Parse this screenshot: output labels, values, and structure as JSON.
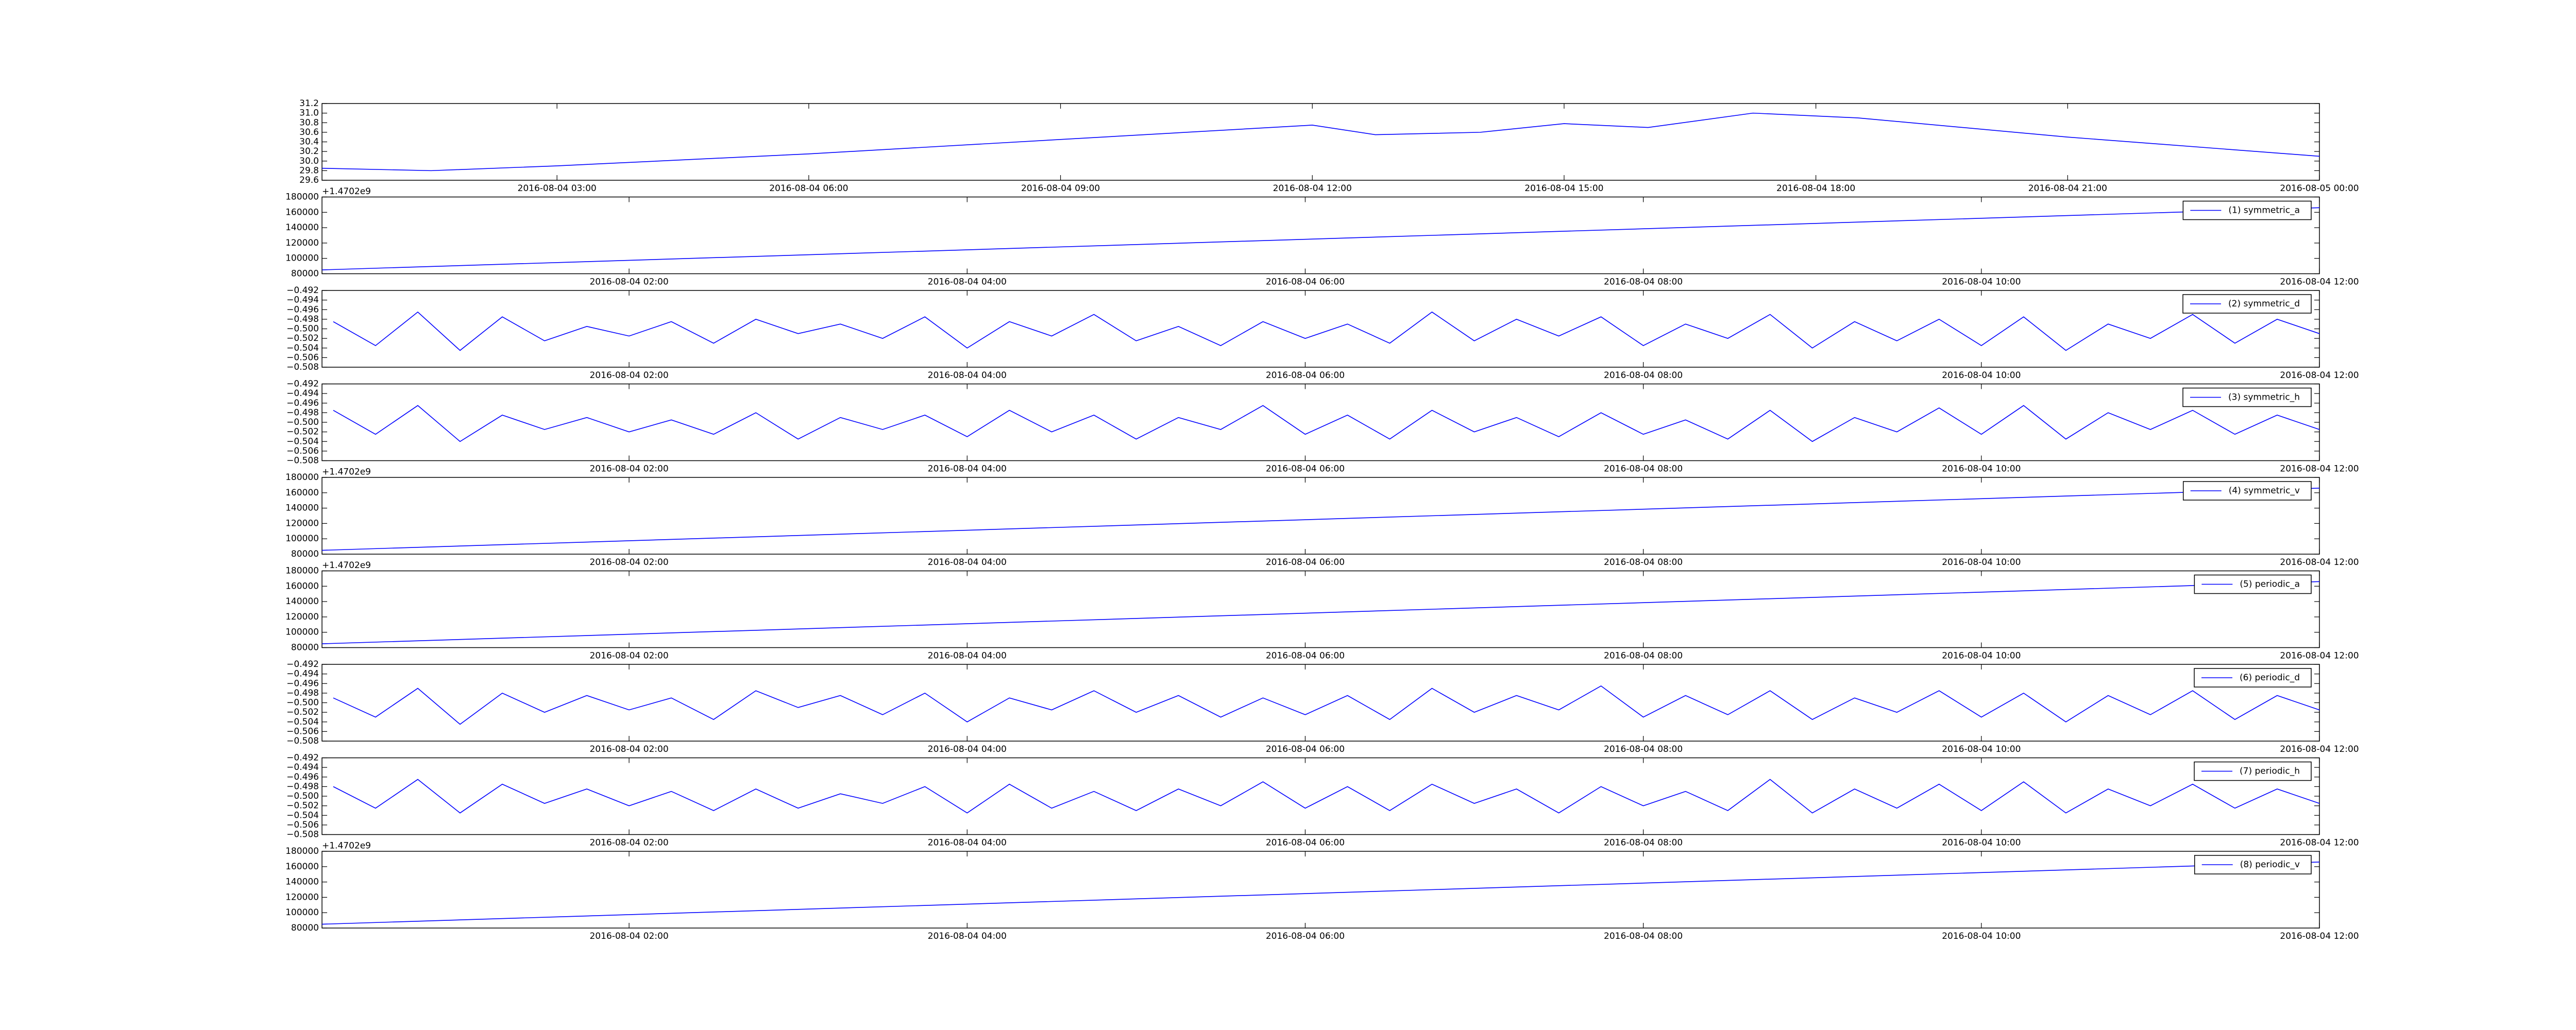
{
  "chart_data": [
    {
      "type": "line",
      "x": [
        "2016-08-04 00:12",
        "2016-08-04 01:30",
        "2016-08-04 03:00",
        "2016-08-04 06:00",
        "2016-08-04 09:00",
        "2016-08-04 12:00",
        "2016-08-04 12:45",
        "2016-08-04 14:00",
        "2016-08-04 15:00",
        "2016-08-04 16:00",
        "2016-08-04 17:15",
        "2016-08-04 18:30",
        "2016-08-04 21:00",
        "2016-08-05 00:00"
      ],
      "series": [
        {
          "color": "#0000ff",
          "values": [
            29.85,
            29.8,
            29.9,
            30.15,
            30.45,
            30.75,
            30.55,
            30.6,
            30.78,
            30.7,
            31.0,
            30.9,
            30.5,
            30.1
          ]
        }
      ],
      "xlim": [
        "2016-08-04 00:12",
        "2016-08-05 00:00"
      ],
      "xticks": [
        "2016-08-04 03:00",
        "2016-08-04 06:00",
        "2016-08-04 09:00",
        "2016-08-04 12:00",
        "2016-08-04 15:00",
        "2016-08-04 18:00",
        "2016-08-04 21:00",
        "2016-08-05 00:00"
      ],
      "ylim": [
        29.6,
        31.2
      ],
      "yticks": [
        29.6,
        29.8,
        {
          "value": 30,
          "label": "30.0"
        },
        30.2,
        30.4,
        30.6,
        30.8,
        {
          "value": 31,
          "label": "31.0"
        },
        31.2
      ],
      "offset_label": "+1.4702e9"
    },
    {
      "type": "line",
      "x": [
        "2016-08-04 00:11",
        "2016-08-04 12:00"
      ],
      "series": [
        {
          "name": "(1) symmetric_a",
          "color": "#0000ff",
          "values": [
            85000,
            166000
          ]
        }
      ],
      "legend": "upper right",
      "xlim": [
        "2016-08-04 00:11",
        "2016-08-04 12:00"
      ],
      "xticks": [
        "2016-08-04 02:00",
        "2016-08-04 04:00",
        "2016-08-04 06:00",
        "2016-08-04 08:00",
        "2016-08-04 10:00",
        "2016-08-04 12:00"
      ],
      "ylim": [
        80000,
        180000
      ],
      "yticks": [
        80000,
        100000,
        120000,
        140000,
        160000,
        180000
      ]
    },
    {
      "type": "line",
      "x": [
        "2016-08-04 00:15",
        "2016-08-04 00:30",
        "2016-08-04 00:45",
        "2016-08-04 01:00",
        "2016-08-04 01:15",
        "2016-08-04 01:30",
        "2016-08-04 01:45",
        "2016-08-04 02:00",
        "2016-08-04 02:15",
        "2016-08-04 02:30",
        "2016-08-04 02:45",
        "2016-08-04 03:00",
        "2016-08-04 03:15",
        "2016-08-04 03:30",
        "2016-08-04 03:45",
        "2016-08-04 04:00",
        "2016-08-04 04:15",
        "2016-08-04 04:30",
        "2016-08-04 04:45",
        "2016-08-04 05:00",
        "2016-08-04 05:15",
        "2016-08-04 05:30",
        "2016-08-04 05:45",
        "2016-08-04 06:00",
        "2016-08-04 06:15",
        "2016-08-04 06:30",
        "2016-08-04 06:45",
        "2016-08-04 07:00",
        "2016-08-04 07:15",
        "2016-08-04 07:30",
        "2016-08-04 07:45",
        "2016-08-04 08:00",
        "2016-08-04 08:15",
        "2016-08-04 08:30",
        "2016-08-04 08:45",
        "2016-08-04 09:00",
        "2016-08-04 09:15",
        "2016-08-04 09:30",
        "2016-08-04 09:45",
        "2016-08-04 10:00",
        "2016-08-04 10:15",
        "2016-08-04 10:30",
        "2016-08-04 10:45",
        "2016-08-04 11:00",
        "2016-08-04 11:15",
        "2016-08-04 11:30",
        "2016-08-04 11:45",
        "2016-08-04 12:00"
      ],
      "series": [
        {
          "name": "(2) symmetric_d",
          "color": "#0000ff",
          "values": [
            -0.4985,
            -0.5035,
            -0.4965,
            -0.5045,
            -0.4975,
            -0.5025,
            -0.4995,
            -0.5015,
            -0.4985,
            -0.503,
            -0.498,
            -0.501,
            -0.499,
            -0.502,
            -0.4975,
            -0.504,
            -0.4985,
            -0.5015,
            -0.497,
            -0.5025,
            -0.4995,
            -0.5035,
            -0.4985,
            -0.502,
            -0.499,
            -0.503,
            -0.4965,
            -0.5025,
            -0.498,
            -0.5015,
            -0.4975,
            -0.5035,
            -0.499,
            -0.502,
            -0.497,
            -0.504,
            -0.4985,
            -0.5025,
            -0.498,
            -0.5035,
            -0.4975,
            -0.5045,
            -0.499,
            -0.502,
            -0.497,
            -0.503,
            -0.498,
            -0.501
          ]
        }
      ],
      "legend": "upper right",
      "xlim": [
        "2016-08-04 00:11",
        "2016-08-04 12:00"
      ],
      "xticks": [
        "2016-08-04 02:00",
        "2016-08-04 04:00",
        "2016-08-04 06:00",
        "2016-08-04 08:00",
        "2016-08-04 10:00",
        "2016-08-04 12:00"
      ],
      "ylim": [
        -0.508,
        -0.492
      ],
      "yticks": [
        {
          "value": -0.508,
          "label": "−0.508"
        },
        {
          "value": -0.506,
          "label": "−0.506"
        },
        {
          "value": -0.504,
          "label": "−0.504"
        },
        {
          "value": -0.502,
          "label": "−0.502"
        },
        {
          "value": -0.5,
          "label": "−0.500"
        },
        {
          "value": -0.498,
          "label": "−0.498"
        },
        {
          "value": -0.496,
          "label": "−0.496"
        },
        {
          "value": -0.494,
          "label": "−0.494"
        },
        {
          "value": -0.492,
          "label": "−0.492"
        }
      ]
    },
    {
      "type": "line",
      "x": [
        "2016-08-04 00:15",
        "2016-08-04 00:30",
        "2016-08-04 00:45",
        "2016-08-04 01:00",
        "2016-08-04 01:15",
        "2016-08-04 01:30",
        "2016-08-04 01:45",
        "2016-08-04 02:00",
        "2016-08-04 02:15",
        "2016-08-04 02:30",
        "2016-08-04 02:45",
        "2016-08-04 03:00",
        "2016-08-04 03:15",
        "2016-08-04 03:30",
        "2016-08-04 03:45",
        "2016-08-04 04:00",
        "2016-08-04 04:15",
        "2016-08-04 04:30",
        "2016-08-04 04:45",
        "2016-08-04 05:00",
        "2016-08-04 05:15",
        "2016-08-04 05:30",
        "2016-08-04 05:45",
        "2016-08-04 06:00",
        "2016-08-04 06:15",
        "2016-08-04 06:30",
        "2016-08-04 06:45",
        "2016-08-04 07:00",
        "2016-08-04 07:15",
        "2016-08-04 07:30",
        "2016-08-04 07:45",
        "2016-08-04 08:00",
        "2016-08-04 08:15",
        "2016-08-04 08:30",
        "2016-08-04 08:45",
        "2016-08-04 09:00",
        "2016-08-04 09:15",
        "2016-08-04 09:30",
        "2016-08-04 09:45",
        "2016-08-04 10:00",
        "2016-08-04 10:15",
        "2016-08-04 10:30",
        "2016-08-04 10:45",
        "2016-08-04 11:00",
        "2016-08-04 11:15",
        "2016-08-04 11:30",
        "2016-08-04 11:45",
        "2016-08-04 12:00"
      ],
      "series": [
        {
          "name": "(3) symmetric_h",
          "color": "#0000ff",
          "values": [
            -0.4975,
            -0.5025,
            -0.4965,
            -0.504,
            -0.4985,
            -0.5015,
            -0.499,
            -0.502,
            -0.4995,
            -0.5025,
            -0.498,
            -0.5035,
            -0.499,
            -0.5015,
            -0.4985,
            -0.503,
            -0.4975,
            -0.502,
            -0.4985,
            -0.5035,
            -0.499,
            -0.5015,
            -0.4965,
            -0.5025,
            -0.4985,
            -0.5035,
            -0.4975,
            -0.502,
            -0.499,
            -0.503,
            -0.498,
            -0.5025,
            -0.4995,
            -0.5035,
            -0.4975,
            -0.504,
            -0.499,
            -0.502,
            -0.497,
            -0.5025,
            -0.4965,
            -0.5035,
            -0.498,
            -0.5015,
            -0.4975,
            -0.5025,
            -0.4985,
            -0.5015
          ]
        }
      ],
      "legend": "upper right",
      "xlim": [
        "2016-08-04 00:11",
        "2016-08-04 12:00"
      ],
      "xticks": [
        "2016-08-04 02:00",
        "2016-08-04 04:00",
        "2016-08-04 06:00",
        "2016-08-04 08:00",
        "2016-08-04 10:00",
        "2016-08-04 12:00"
      ],
      "ylim": [
        -0.508,
        -0.492
      ],
      "yticks": [
        {
          "value": -0.508,
          "label": "−0.508"
        },
        {
          "value": -0.506,
          "label": "−0.506"
        },
        {
          "value": -0.504,
          "label": "−0.504"
        },
        {
          "value": -0.502,
          "label": "−0.502"
        },
        {
          "value": -0.5,
          "label": "−0.500"
        },
        {
          "value": -0.498,
          "label": "−0.498"
        },
        {
          "value": -0.496,
          "label": "−0.496"
        },
        {
          "value": -0.494,
          "label": "−0.494"
        },
        {
          "value": -0.492,
          "label": "−0.492"
        }
      ],
      "offset_label": "+1.4702e9"
    },
    {
      "type": "line",
      "x": [
        "2016-08-04 00:11",
        "2016-08-04 12:00"
      ],
      "series": [
        {
          "name": "(4) symmetric_v",
          "color": "#0000ff",
          "values": [
            85000,
            166000
          ]
        }
      ],
      "legend": "upper right",
      "xlim": [
        "2016-08-04 00:11",
        "2016-08-04 12:00"
      ],
      "xticks": [
        "2016-08-04 02:00",
        "2016-08-04 04:00",
        "2016-08-04 06:00",
        "2016-08-04 08:00",
        "2016-08-04 10:00",
        "2016-08-04 12:00"
      ],
      "ylim": [
        80000,
        180000
      ],
      "yticks": [
        80000,
        100000,
        120000,
        140000,
        160000,
        180000
      ],
      "offset_label": "+1.4702e9"
    },
    {
      "type": "line",
      "x": [
        "2016-08-04 00:11",
        "2016-08-04 12:00"
      ],
      "series": [
        {
          "name": "(5) periodic_a",
          "color": "#0000ff",
          "values": [
            85000,
            166000
          ]
        }
      ],
      "legend": "upper right",
      "xlim": [
        "2016-08-04 00:11",
        "2016-08-04 12:00"
      ],
      "xticks": [
        "2016-08-04 02:00",
        "2016-08-04 04:00",
        "2016-08-04 06:00",
        "2016-08-04 08:00",
        "2016-08-04 10:00",
        "2016-08-04 12:00"
      ],
      "ylim": [
        80000,
        180000
      ],
      "yticks": [
        80000,
        100000,
        120000,
        140000,
        160000,
        180000
      ]
    },
    {
      "type": "line",
      "x": [
        "2016-08-04 00:15",
        "2016-08-04 00:30",
        "2016-08-04 00:45",
        "2016-08-04 01:00",
        "2016-08-04 01:15",
        "2016-08-04 01:30",
        "2016-08-04 01:45",
        "2016-08-04 02:00",
        "2016-08-04 02:15",
        "2016-08-04 02:30",
        "2016-08-04 02:45",
        "2016-08-04 03:00",
        "2016-08-04 03:15",
        "2016-08-04 03:30",
        "2016-08-04 03:45",
        "2016-08-04 04:00",
        "2016-08-04 04:15",
        "2016-08-04 04:30",
        "2016-08-04 04:45",
        "2016-08-04 05:00",
        "2016-08-04 05:15",
        "2016-08-04 05:30",
        "2016-08-04 05:45",
        "2016-08-04 06:00",
        "2016-08-04 06:15",
        "2016-08-04 06:30",
        "2016-08-04 06:45",
        "2016-08-04 07:00",
        "2016-08-04 07:15",
        "2016-08-04 07:30",
        "2016-08-04 07:45",
        "2016-08-04 08:00",
        "2016-08-04 08:15",
        "2016-08-04 08:30",
        "2016-08-04 08:45",
        "2016-08-04 09:00",
        "2016-08-04 09:15",
        "2016-08-04 09:30",
        "2016-08-04 09:45",
        "2016-08-04 10:00",
        "2016-08-04 10:15",
        "2016-08-04 10:30",
        "2016-08-04 10:45",
        "2016-08-04 11:00",
        "2016-08-04 11:15",
        "2016-08-04 11:30",
        "2016-08-04 11:45",
        "2016-08-04 12:00"
      ],
      "series": [
        {
          "name": "(6) periodic_d",
          "color": "#0000ff",
          "values": [
            -0.499,
            -0.503,
            -0.497,
            -0.5045,
            -0.498,
            -0.502,
            -0.4985,
            -0.5015,
            -0.499,
            -0.5035,
            -0.4975,
            -0.501,
            -0.4985,
            -0.5025,
            -0.498,
            -0.504,
            -0.499,
            -0.5015,
            -0.4975,
            -0.502,
            -0.4985,
            -0.503,
            -0.499,
            -0.5025,
            -0.4985,
            -0.5035,
            -0.497,
            -0.502,
            -0.4985,
            -0.5015,
            -0.4965,
            -0.503,
            -0.4985,
            -0.5025,
            -0.4975,
            -0.5035,
            -0.499,
            -0.502,
            -0.4975,
            -0.503,
            -0.498,
            -0.504,
            -0.4985,
            -0.5025,
            -0.4975,
            -0.5035,
            -0.4985,
            -0.5015
          ]
        }
      ],
      "legend": "upper right",
      "xlim": [
        "2016-08-04 00:11",
        "2016-08-04 12:00"
      ],
      "xticks": [
        "2016-08-04 02:00",
        "2016-08-04 04:00",
        "2016-08-04 06:00",
        "2016-08-04 08:00",
        "2016-08-04 10:00",
        "2016-08-04 12:00"
      ],
      "ylim": [
        -0.508,
        -0.492
      ],
      "yticks": [
        {
          "value": -0.508,
          "label": "−0.508"
        },
        {
          "value": -0.506,
          "label": "−0.506"
        },
        {
          "value": -0.504,
          "label": "−0.504"
        },
        {
          "value": -0.502,
          "label": "−0.502"
        },
        {
          "value": -0.5,
          "label": "−0.500"
        },
        {
          "value": -0.498,
          "label": "−0.498"
        },
        {
          "value": -0.496,
          "label": "−0.496"
        },
        {
          "value": -0.494,
          "label": "−0.494"
        },
        {
          "value": -0.492,
          "label": "−0.492"
        }
      ]
    },
    {
      "type": "line",
      "x": [
        "2016-08-04 00:15",
        "2016-08-04 00:30",
        "2016-08-04 00:45",
        "2016-08-04 01:00",
        "2016-08-04 01:15",
        "2016-08-04 01:30",
        "2016-08-04 01:45",
        "2016-08-04 02:00",
        "2016-08-04 02:15",
        "2016-08-04 02:30",
        "2016-08-04 02:45",
        "2016-08-04 03:00",
        "2016-08-04 03:15",
        "2016-08-04 03:30",
        "2016-08-04 03:45",
        "2016-08-04 04:00",
        "2016-08-04 04:15",
        "2016-08-04 04:30",
        "2016-08-04 04:45",
        "2016-08-04 05:00",
        "2016-08-04 05:15",
        "2016-08-04 05:30",
        "2016-08-04 05:45",
        "2016-08-04 06:00",
        "2016-08-04 06:15",
        "2016-08-04 06:30",
        "2016-08-04 06:45",
        "2016-08-04 07:00",
        "2016-08-04 07:15",
        "2016-08-04 07:30",
        "2016-08-04 07:45",
        "2016-08-04 08:00",
        "2016-08-04 08:15",
        "2016-08-04 08:30",
        "2016-08-04 08:45",
        "2016-08-04 09:00",
        "2016-08-04 09:15",
        "2016-08-04 09:30",
        "2016-08-04 09:45",
        "2016-08-04 10:00",
        "2016-08-04 10:15",
        "2016-08-04 10:30",
        "2016-08-04 10:45",
        "2016-08-04 11:00",
        "2016-08-04 11:15",
        "2016-08-04 11:30",
        "2016-08-04 11:45",
        "2016-08-04 12:00"
      ],
      "series": [
        {
          "name": "(7) periodic_h",
          "color": "#0000ff",
          "values": [
            -0.498,
            -0.5025,
            -0.4965,
            -0.5035,
            -0.4975,
            -0.5015,
            -0.4985,
            -0.502,
            -0.499,
            -0.503,
            -0.4985,
            -0.5025,
            -0.4995,
            -0.5015,
            -0.498,
            -0.5035,
            -0.4975,
            -0.5025,
            -0.499,
            -0.503,
            -0.4985,
            -0.502,
            -0.497,
            -0.5025,
            -0.498,
            -0.503,
            -0.4975,
            -0.5015,
            -0.4985,
            -0.5035,
            -0.498,
            -0.502,
            -0.499,
            -0.503,
            -0.4965,
            -0.5035,
            -0.4985,
            -0.5025,
            -0.4975,
            -0.503,
            -0.497,
            -0.5035,
            -0.4985,
            -0.502,
            -0.4975,
            -0.5025,
            -0.4985,
            -0.5015
          ]
        }
      ],
      "legend": "upper right",
      "xlim": [
        "2016-08-04 00:11",
        "2016-08-04 12:00"
      ],
      "xticks": [
        "2016-08-04 02:00",
        "2016-08-04 04:00",
        "2016-08-04 06:00",
        "2016-08-04 08:00",
        "2016-08-04 10:00",
        "2016-08-04 12:00"
      ],
      "ylim": [
        -0.508,
        -0.492
      ],
      "yticks": [
        {
          "value": -0.508,
          "label": "−0.508"
        },
        {
          "value": -0.506,
          "label": "−0.506"
        },
        {
          "value": -0.504,
          "label": "−0.504"
        },
        {
          "value": -0.502,
          "label": "−0.502"
        },
        {
          "value": -0.5,
          "label": "−0.500"
        },
        {
          "value": -0.498,
          "label": "−0.498"
        },
        {
          "value": -0.496,
          "label": "−0.496"
        },
        {
          "value": -0.494,
          "label": "−0.494"
        },
        {
          "value": -0.492,
          "label": "−0.492"
        }
      ],
      "offset_label": "+1.4702e9"
    },
    {
      "type": "line",
      "x": [
        "2016-08-04 00:11",
        "2016-08-04 12:00"
      ],
      "series": [
        {
          "name": "(8) periodic_v",
          "color": "#0000ff",
          "values": [
            85000,
            166000
          ]
        }
      ],
      "legend": "upper right",
      "xlim": [
        "2016-08-04 00:11",
        "2016-08-04 12:00"
      ],
      "xticks": [
        "2016-08-04 02:00",
        "2016-08-04 04:00",
        "2016-08-04 06:00",
        "2016-08-04 08:00",
        "2016-08-04 10:00",
        "2016-08-04 12:00"
      ],
      "ylim": [
        80000,
        180000
      ],
      "yticks": [
        80000,
        100000,
        120000,
        140000,
        160000,
        180000
      ]
    }
  ]
}
